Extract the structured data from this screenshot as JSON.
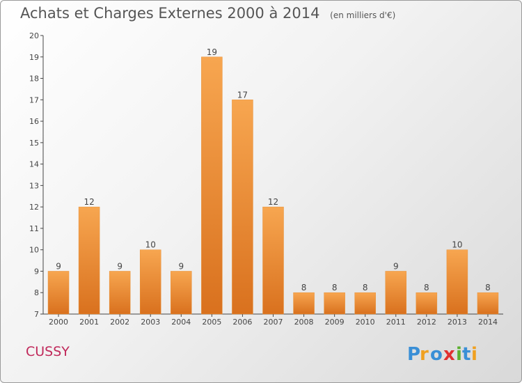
{
  "header": {
    "title": "Achats et Charges Externes 2000 à 2014",
    "unit": "(en milliers d'€)"
  },
  "footer": {
    "city": "CUSSY",
    "logo_text": "Proxiti"
  },
  "colors": {
    "bar": "#f39c3c",
    "bar_dark": "#d9711e",
    "axis": "#444444",
    "city": "#c0285a"
  },
  "chart_data": {
    "type": "bar",
    "title": "Achats et Charges Externes 2000 à 2014",
    "subtitle": "(en milliers d'€)",
    "categories": [
      "2000",
      "2001",
      "2002",
      "2003",
      "2004",
      "2005",
      "2006",
      "2007",
      "2008",
      "2009",
      "2010",
      "2011",
      "2012",
      "2013",
      "2014"
    ],
    "values": [
      9,
      12,
      9,
      10,
      9,
      19,
      17,
      12,
      8,
      8,
      8,
      9,
      8,
      10,
      8
    ],
    "ylim": [
      7,
      20
    ],
    "yticks": [
      7,
      8,
      9,
      10,
      11,
      12,
      13,
      14,
      15,
      16,
      17,
      18,
      19,
      20
    ],
    "grid": false,
    "data_labels": true
  }
}
